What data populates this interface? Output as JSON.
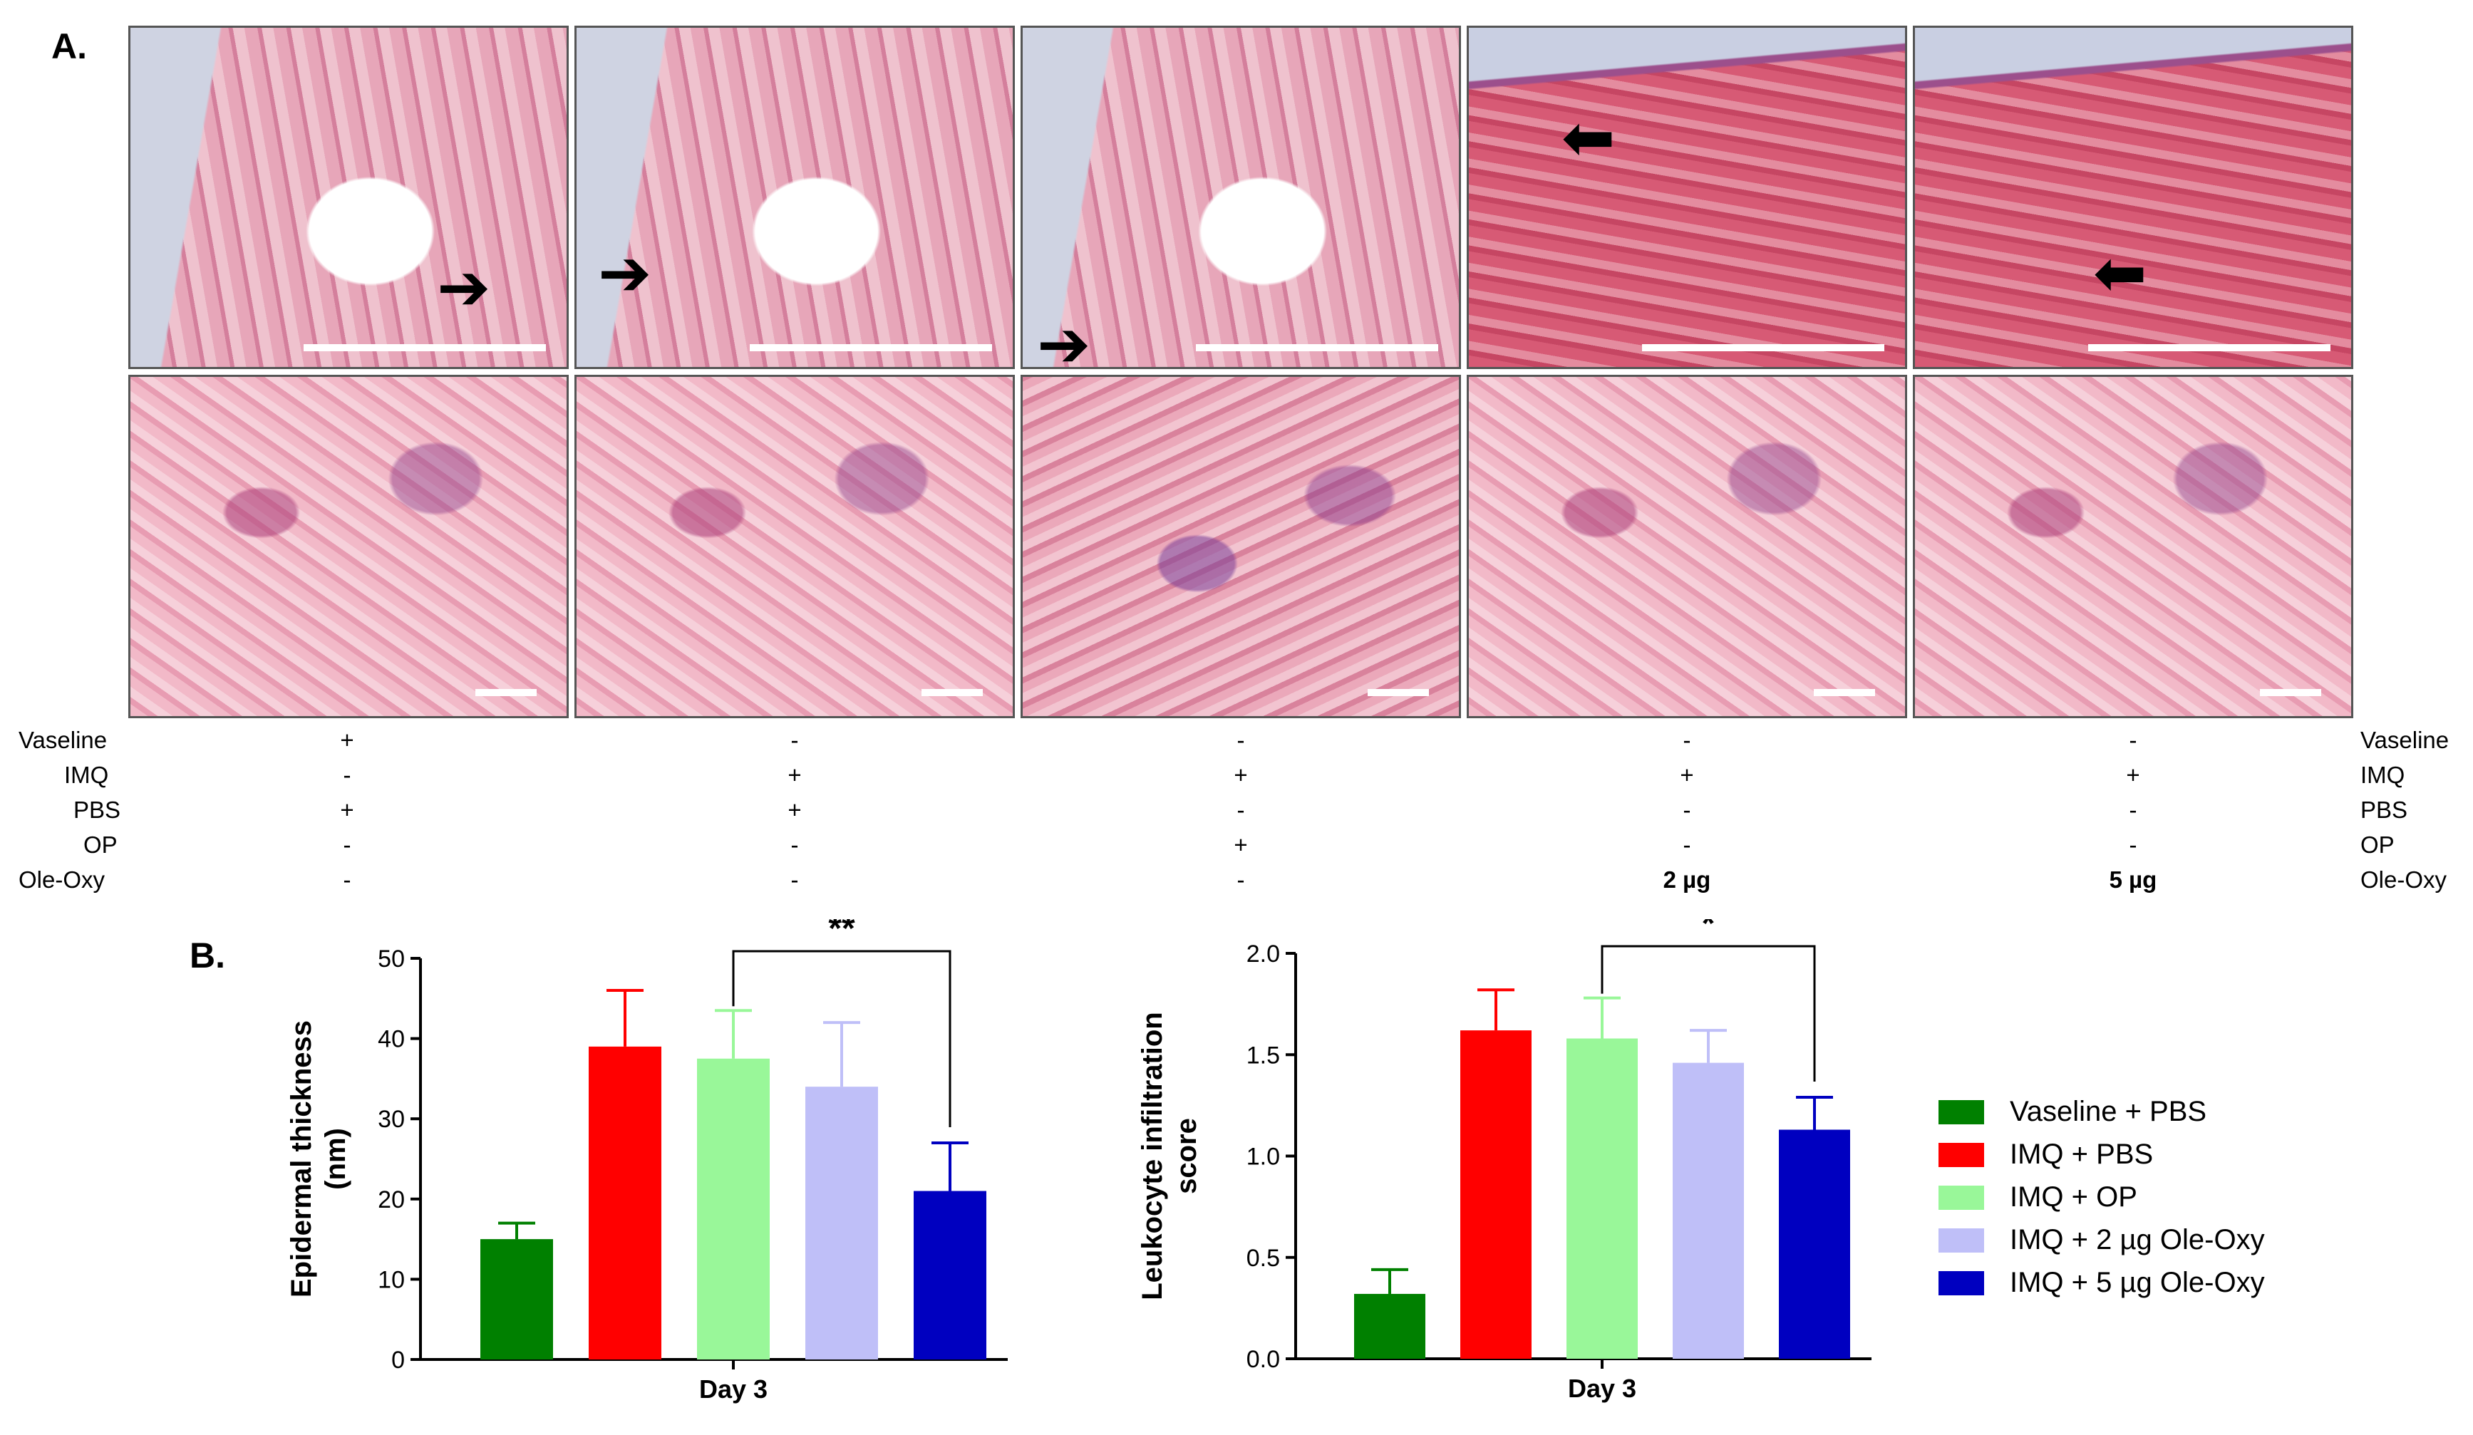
{
  "panel_a": {
    "label": "A.",
    "arrow_glyph_right": "➔",
    "arrow_glyph_left": "⬅"
  },
  "treatment_table": {
    "row_labels": [
      "Vaseline",
      "IMQ",
      "PBS",
      "OP",
      "Ole-Oxy"
    ],
    "columns": [
      [
        "+",
        "-",
        "+",
        "-",
        "-"
      ],
      [
        "-",
        "+",
        "+",
        "-",
        "-"
      ],
      [
        "-",
        "+",
        "-",
        "+",
        "-"
      ],
      [
        "-",
        "+",
        "-",
        "-",
        "2 µg"
      ],
      [
        "-",
        "+",
        "-",
        "-",
        "5 µg"
      ]
    ]
  },
  "panel_b": {
    "label": "B."
  },
  "legend": {
    "items": [
      {
        "label": "Vaseline + PBS",
        "color": "#008000"
      },
      {
        "label": "IMQ + PBS",
        "color": "#ff0000"
      },
      {
        "label": "IMQ + OP",
        "color": "#99f799"
      },
      {
        "label": "IMQ + 2 µg Ole-Oxy",
        "color": "#bfbff8"
      },
      {
        "label": "IMQ + 5 µg Ole-Oxy",
        "color": "#0000c0"
      }
    ]
  },
  "chart_data": [
    {
      "type": "bar",
      "xlabel": "Day 3",
      "ylabel": "Epidermal thickness (nm)",
      "ylabel_lines": [
        "Epidermal thickness",
        "(nm)"
      ],
      "ylim": [
        0,
        50
      ],
      "yticks": [
        0,
        10,
        20,
        30,
        40,
        50
      ],
      "ytick_labels": [
        "0",
        "10",
        "20",
        "30",
        "40",
        "50"
      ],
      "values": [
        15,
        39,
        37.5,
        34,
        21
      ],
      "errors": [
        2,
        7,
        6,
        8,
        6
      ],
      "significance": {
        "from": 2,
        "to": 4,
        "label": "**"
      }
    },
    {
      "type": "bar",
      "xlabel": "Day 3",
      "ylabel": "Leukocyte infiltration score",
      "ylabel_lines": [
        "Leukocyte infiltration",
        "score"
      ],
      "ylim": [
        0,
        2.0
      ],
      "yticks": [
        0,
        0.5,
        1.0,
        1.5,
        2.0
      ],
      "ytick_labels": [
        "0.0",
        "0.5",
        "1.0",
        "1.5",
        "2.0"
      ],
      "values": [
        0.32,
        1.62,
        1.58,
        1.46,
        1.13
      ],
      "errors": [
        0.12,
        0.2,
        0.2,
        0.16,
        0.16
      ],
      "significance": {
        "from": 2,
        "to": 4,
        "label": "*"
      }
    }
  ]
}
